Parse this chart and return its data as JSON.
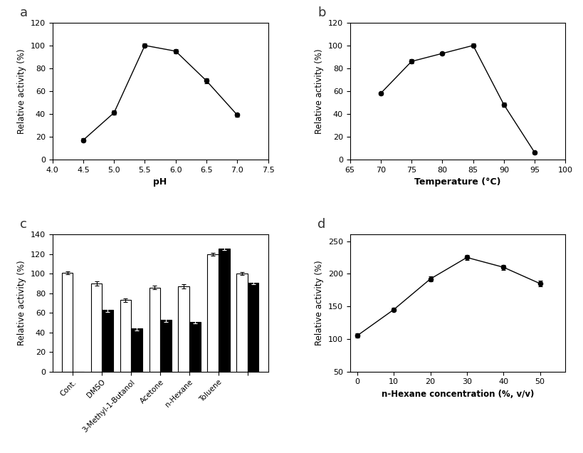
{
  "panel_a": {
    "x": [
      4.5,
      5.0,
      5.5,
      6.0,
      6.5,
      7.0
    ],
    "y": [
      17,
      41,
      100,
      95,
      69,
      39
    ],
    "yerr": [
      1.5,
      2.0,
      1.5,
      2.0,
      2.0,
      1.5
    ],
    "xlabel": "pH",
    "ylabel": "Relative activity (%)",
    "xlim": [
      4.0,
      7.5
    ],
    "ylim": [
      0,
      120
    ],
    "xticks": [
      4.0,
      4.5,
      5.0,
      5.5,
      6.0,
      6.5,
      7.0,
      7.5
    ],
    "yticks": [
      0,
      20,
      40,
      60,
      80,
      100,
      120
    ],
    "label": "a"
  },
  "panel_b": {
    "x": [
      70,
      75,
      80,
      85,
      90,
      95
    ],
    "y": [
      58,
      86,
      93,
      100,
      48,
      6
    ],
    "yerr": [
      1.5,
      2.0,
      1.5,
      1.5,
      2.0,
      1.0
    ],
    "xlabel": "Temperature (°C)",
    "ylabel": "Relative activity (%)",
    "xlim": [
      65,
      100
    ],
    "ylim": [
      0,
      120
    ],
    "xticks": [
      65,
      70,
      75,
      80,
      85,
      90,
      95,
      100
    ],
    "yticks": [
      0,
      20,
      40,
      60,
      80,
      100,
      120
    ],
    "label": "b"
  },
  "panel_c": {
    "categories": [
      "Cont.",
      "DMSO",
      "3-Methyl-1-Butanol",
      "Acetone",
      "n-Hexane",
      "Toluene",
      ""
    ],
    "white_bars": [
      101,
      90,
      73,
      86,
      87,
      120,
      100
    ],
    "black_bars": [
      0,
      63,
      44,
      53,
      51,
      126,
      91
    ],
    "white_err": [
      1.5,
      2.0,
      2.0,
      1.5,
      2.0,
      1.5,
      1.5
    ],
    "black_err": [
      0,
      2.0,
      2.0,
      2.0,
      2.0,
      1.5,
      1.5
    ],
    "ylabel": "Relative activity (%)",
    "ylim": [
      0,
      140
    ],
    "yticks": [
      0,
      20,
      40,
      60,
      80,
      100,
      120,
      140
    ],
    "label": "c"
  },
  "panel_d": {
    "x": [
      0,
      10,
      20,
      30,
      40,
      50
    ],
    "y": [
      105,
      145,
      192,
      225,
      210,
      185
    ],
    "yerr": [
      3,
      3,
      4,
      4,
      4,
      4
    ],
    "xlabel": "n-Hexane concentration (%, v/v)",
    "ylabel": "Relative activity (%)",
    "xlim": [
      -2,
      57
    ],
    "ylim": [
      50,
      260
    ],
    "xticks": [
      0,
      10,
      20,
      30,
      40,
      50
    ],
    "yticks": [
      50,
      100,
      150,
      200,
      250
    ],
    "label": "d"
  }
}
